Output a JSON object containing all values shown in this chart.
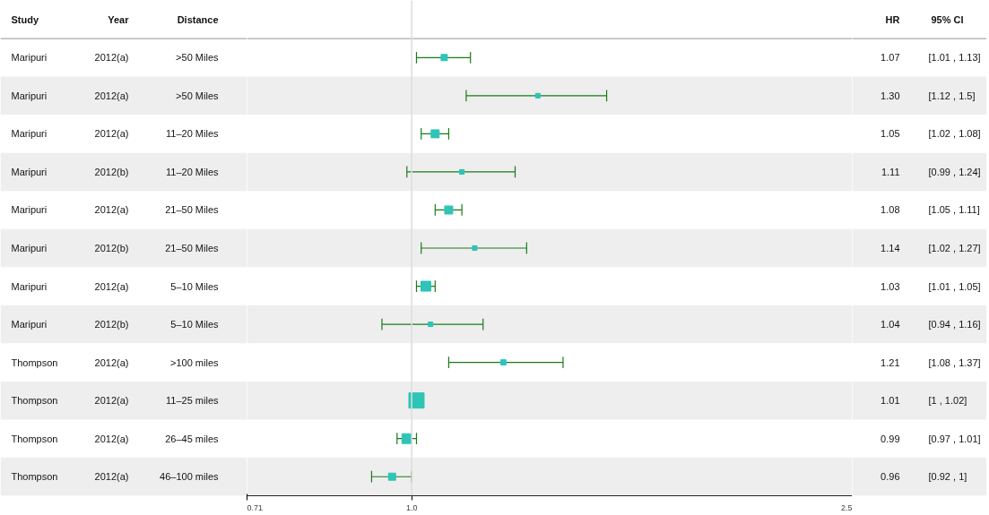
{
  "chart_data": {
    "type": "bubble",
    "orientation": "horizontal",
    "marker": "square",
    "log": "x",
    "grid": false,
    "categories": [
      ">50 Miles",
      ">50 Miles",
      "11–20 Miles",
      "11–20 Miles",
      "21–50 Miles",
      "21–50 Miles",
      "5–10 Miles",
      "5–10 Miles",
      ">100 miles",
      "11–25 miles",
      "26–45 miles",
      "46–100 miles"
    ],
    "series": [
      {
        "color": "#2ec4b6",
        "values": [
          1.07,
          1.3,
          1.05,
          1.11,
          1.08,
          1.14,
          1.03,
          1.04,
          1.21,
          1.01,
          0.99,
          0.96
        ],
        "value_labels": [
          "1.07",
          "1.30",
          "1.05",
          "1.11",
          "1.08",
          "1.14",
          "1.03",
          "1.04",
          "1.21",
          "1.01",
          "0.99",
          "0.96"
        ],
        "errors": [
          [
            1.01,
            1.13
          ],
          [
            1.12,
            1.5
          ],
          [
            1.02,
            1.08
          ],
          [
            0.99,
            1.24
          ],
          [
            1.05,
            1.11
          ],
          [
            1.02,
            1.27
          ],
          [
            1.01,
            1.05
          ],
          [
            0.94,
            1.16
          ],
          [
            1.08,
            1.37
          ],
          null,
          [
            0.97,
            1.01
          ],
          [
            0.92,
            1
          ]
        ],
        "sizes": [
          0.17,
          0.09,
          0.28,
          0.09,
          0.28,
          0.09,
          0.42,
          0.09,
          0.12,
          1,
          0.42,
          0.22
        ]
      }
    ],
    "xlim": [
      0.71,
      2.5
    ],
    "xticks": [
      0.71,
      {
        "value": 1,
        "label": "1.0"
      },
      2.5
    ],
    "ref_lines": [
      {
        "axis": "x",
        "value": 1,
        "color": "#dddddd"
      }
    ],
    "annotations": [
      "Study",
      "Year",
      "Distance",
      "HR",
      "95% CI",
      "Maripuri",
      "2012(a)",
      "[1.01 , 1.13]",
      "Maripuri",
      "2012(a)",
      "[1.12 , 1.5]",
      "Maripuri",
      "2012(a)",
      "[1.02 , 1.08]",
      "Maripuri",
      "2012(b)",
      "[0.99 , 1.24]",
      "Maripuri",
      "2012(a)",
      "[1.05 , 1.11]",
      "Maripuri",
      "2012(b)",
      "[1.02 , 1.27]",
      "Maripuri",
      "2012(a)",
      "[1.01 , 1.05]",
      "Maripuri",
      "2012(b)",
      "[0.94 , 1.16]",
      "Thompson",
      "2012(a)",
      "[1.08 , 1.37]",
      "Thompson",
      "2012(a)",
      "[1 , 1.02]",
      "Thompson",
      "2012(a)",
      "[0.97 , 1.01]",
      "Thompson",
      "2012(a)",
      "[0.92 , 1]"
    ]
  }
}
